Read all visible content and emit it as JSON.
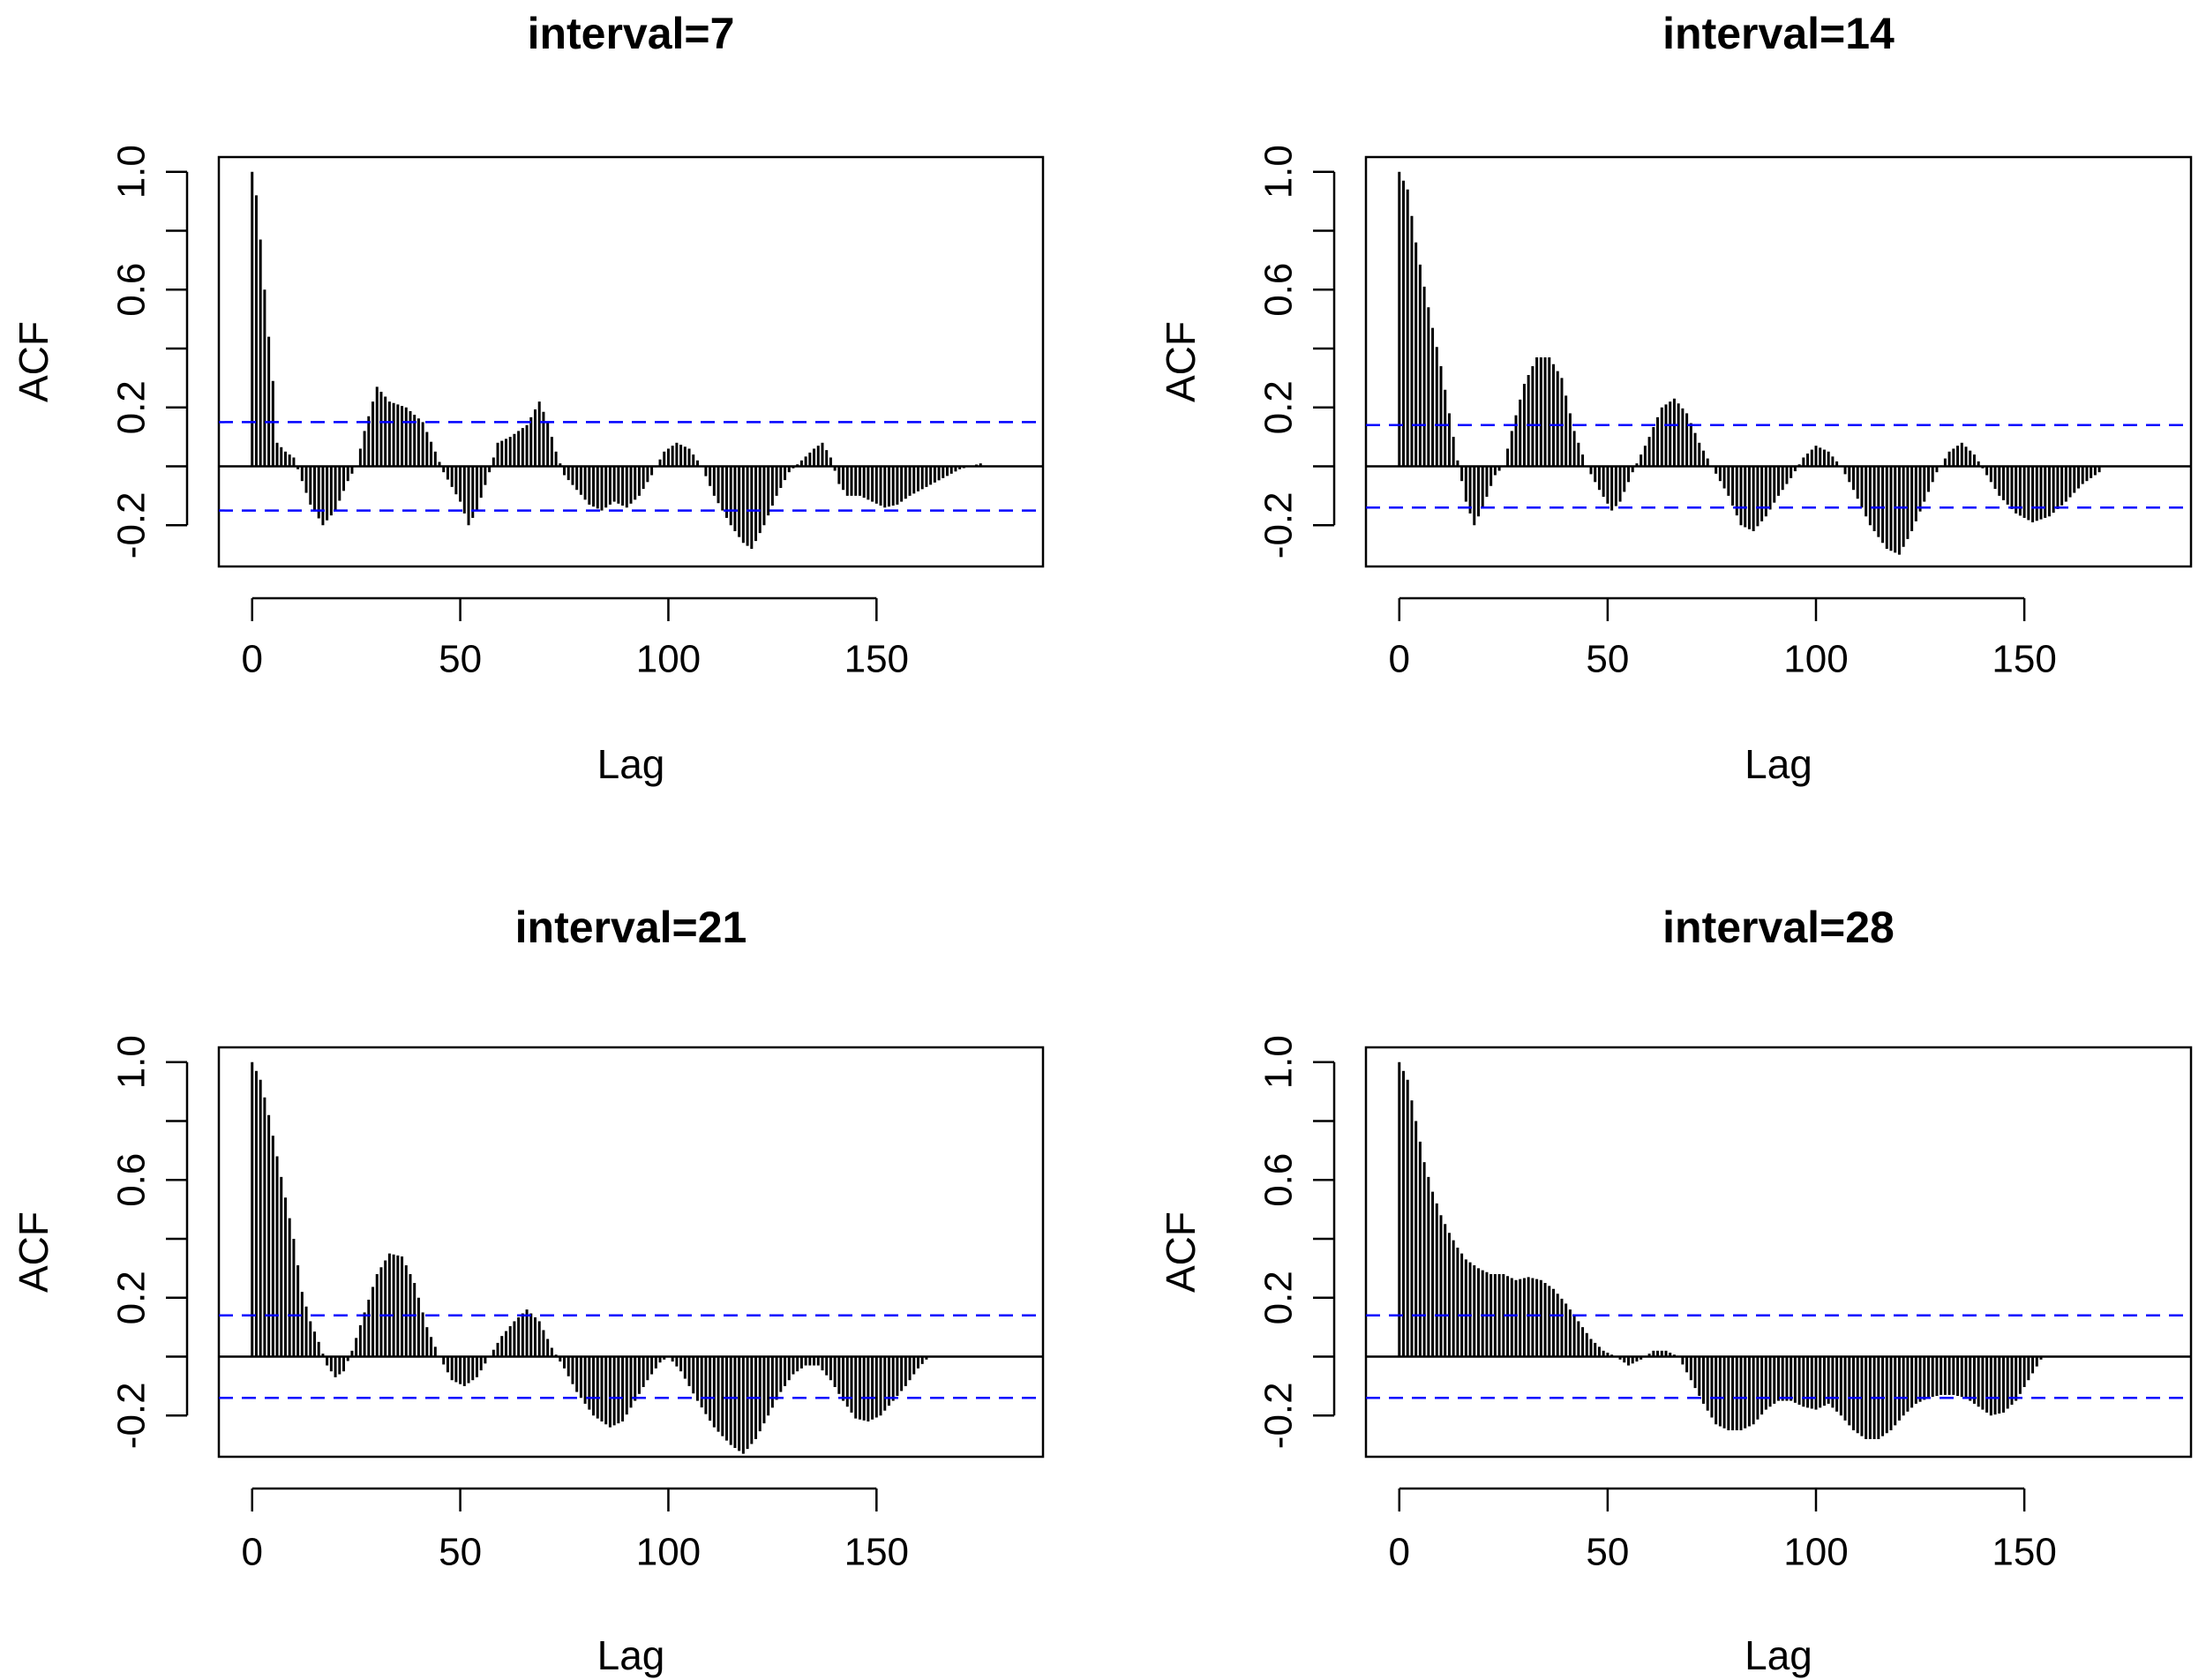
{
  "figure": {
    "background": "#ffffff",
    "line_color": "#000000",
    "ci_color": "#0000ff"
  },
  "chart_data": [
    {
      "type": "bar",
      "subtype": "acf",
      "title": "interval=7",
      "xlabel": "Lag",
      "ylabel": "ACF",
      "xlim": [
        -8,
        190
      ],
      "ylim": [
        -0.34,
        1.05
      ],
      "xticks": [
        "0",
        "50",
        "100",
        "150"
      ],
      "yticks": [
        "-0.2",
        "0.2",
        "0.6",
        "1.0"
      ],
      "ci": 0.15,
      "lag_step": 1,
      "acf_keyframes": [
        [
          0,
          1.0
        ],
        [
          1,
          0.92
        ],
        [
          2,
          0.77
        ],
        [
          3,
          0.6
        ],
        [
          4,
          0.44
        ],
        [
          5,
          0.29
        ],
        [
          6,
          0.08
        ],
        [
          8,
          0.05
        ],
        [
          10,
          0.03
        ],
        [
          12,
          -0.05
        ],
        [
          14,
          -0.13
        ],
        [
          17,
          -0.2
        ],
        [
          20,
          -0.15
        ],
        [
          23,
          -0.05
        ],
        [
          25,
          0.0
        ],
        [
          27,
          0.12
        ],
        [
          30,
          0.27
        ],
        [
          33,
          0.22
        ],
        [
          37,
          0.2
        ],
        [
          41,
          0.15
        ],
        [
          44,
          0.05
        ],
        [
          46,
          -0.02
        ],
        [
          50,
          -0.12
        ],
        [
          52,
          -0.2
        ],
        [
          54,
          -0.15
        ],
        [
          57,
          -0.02
        ],
        [
          59,
          0.08
        ],
        [
          62,
          0.1
        ],
        [
          66,
          0.14
        ],
        [
          69,
          0.22
        ],
        [
          71,
          0.15
        ],
        [
          73,
          0.05
        ],
        [
          75,
          -0.03
        ],
        [
          78,
          -0.08
        ],
        [
          81,
          -0.13
        ],
        [
          84,
          -0.15
        ],
        [
          87,
          -0.12
        ],
        [
          90,
          -0.14
        ],
        [
          93,
          -0.1
        ],
        [
          96,
          -0.03
        ],
        [
          99,
          0.05
        ],
        [
          102,
          0.08
        ],
        [
          105,
          0.06
        ],
        [
          108,
          0.0
        ],
        [
          111,
          -0.1
        ],
        [
          115,
          -0.2
        ],
        [
          118,
          -0.26
        ],
        [
          120,
          -0.28
        ],
        [
          123,
          -0.2
        ],
        [
          126,
          -0.1
        ],
        [
          129,
          -0.02
        ],
        [
          132,
          0.02
        ],
        [
          135,
          0.06
        ],
        [
          137,
          0.08
        ],
        [
          139,
          0.03
        ],
        [
          141,
          -0.06
        ],
        [
          143,
          -0.1
        ],
        [
          146,
          -0.1
        ],
        [
          149,
          -0.12
        ],
        [
          152,
          -0.14
        ],
        [
          155,
          -0.13
        ],
        [
          158,
          -0.1
        ],
        [
          162,
          -0.07
        ],
        [
          166,
          -0.04
        ],
        [
          170,
          -0.01
        ],
        [
          175,
          0.01
        ]
      ]
    },
    {
      "type": "bar",
      "subtype": "acf",
      "title": "interval=14",
      "xlabel": "Lag",
      "ylabel": "ACF",
      "xlim": [
        -8,
        190
      ],
      "ylim": [
        -0.34,
        1.05
      ],
      "xticks": [
        "0",
        "50",
        "100",
        "150"
      ],
      "yticks": [
        "-0.2",
        "0.2",
        "0.6",
        "1.0"
      ],
      "ci": 0.14,
      "lag_step": 1,
      "acf_keyframes": [
        [
          0,
          1.0
        ],
        [
          2,
          0.94
        ],
        [
          4,
          0.76
        ],
        [
          6,
          0.61
        ],
        [
          8,
          0.47
        ],
        [
          10,
          0.34
        ],
        [
          12,
          0.18
        ],
        [
          14,
          0.02
        ],
        [
          16,
          -0.12
        ],
        [
          18,
          -0.2
        ],
        [
          20,
          -0.14
        ],
        [
          23,
          -0.03
        ],
        [
          25,
          0.0
        ],
        [
          27,
          0.12
        ],
        [
          30,
          0.28
        ],
        [
          33,
          0.37
        ],
        [
          36,
          0.37
        ],
        [
          39,
          0.3
        ],
        [
          42,
          0.12
        ],
        [
          45,
          0.0
        ],
        [
          48,
          -0.08
        ],
        [
          51,
          -0.15
        ],
        [
          53,
          -0.12
        ],
        [
          56,
          -0.02
        ],
        [
          60,
          0.1
        ],
        [
          63,
          0.2
        ],
        [
          66,
          0.23
        ],
        [
          69,
          0.18
        ],
        [
          72,
          0.08
        ],
        [
          75,
          0.0
        ],
        [
          79,
          -0.1
        ],
        [
          82,
          -0.2
        ],
        [
          85,
          -0.22
        ],
        [
          88,
          -0.17
        ],
        [
          91,
          -0.1
        ],
        [
          94,
          -0.04
        ],
        [
          97,
          0.03
        ],
        [
          100,
          0.07
        ],
        [
          103,
          0.05
        ],
        [
          106,
          0.0
        ],
        [
          109,
          -0.08
        ],
        [
          113,
          -0.2
        ],
        [
          117,
          -0.28
        ],
        [
          120,
          -0.3
        ],
        [
          123,
          -0.22
        ],
        [
          126,
          -0.12
        ],
        [
          129,
          -0.02
        ],
        [
          132,
          0.05
        ],
        [
          135,
          0.08
        ],
        [
          138,
          0.04
        ],
        [
          141,
          -0.03
        ],
        [
          144,
          -0.1
        ],
        [
          148,
          -0.16
        ],
        [
          152,
          -0.19
        ],
        [
          156,
          -0.17
        ],
        [
          160,
          -0.12
        ],
        [
          164,
          -0.06
        ],
        [
          168,
          -0.02
        ]
      ]
    },
    {
      "type": "bar",
      "subtype": "acf",
      "title": "interval=21",
      "xlabel": "Lag",
      "ylabel": "ACF",
      "xlim": [
        -8,
        190
      ],
      "ylim": [
        -0.34,
        1.05
      ],
      "xticks": [
        "0",
        "50",
        "100",
        "150"
      ],
      "yticks": [
        "-0.2",
        "0.2",
        "0.6",
        "1.0"
      ],
      "ci": 0.14,
      "lag_step": 1,
      "acf_keyframes": [
        [
          0,
          1.0
        ],
        [
          2,
          0.94
        ],
        [
          4,
          0.82
        ],
        [
          6,
          0.68
        ],
        [
          8,
          0.54
        ],
        [
          10,
          0.4
        ],
        [
          12,
          0.22
        ],
        [
          14,
          0.12
        ],
        [
          16,
          0.05
        ],
        [
          18,
          -0.03
        ],
        [
          20,
          -0.07
        ],
        [
          22,
          -0.05
        ],
        [
          24,
          0.02
        ],
        [
          27,
          0.15
        ],
        [
          30,
          0.28
        ],
        [
          33,
          0.35
        ],
        [
          36,
          0.34
        ],
        [
          39,
          0.25
        ],
        [
          42,
          0.1
        ],
        [
          45,
          0.0
        ],
        [
          48,
          -0.08
        ],
        [
          51,
          -0.1
        ],
        [
          54,
          -0.07
        ],
        [
          57,
          0.0
        ],
        [
          60,
          0.07
        ],
        [
          63,
          0.12
        ],
        [
          66,
          0.16
        ],
        [
          69,
          0.12
        ],
        [
          72,
          0.03
        ],
        [
          75,
          -0.04
        ],
        [
          78,
          -0.12
        ],
        [
          82,
          -0.2
        ],
        [
          86,
          -0.24
        ],
        [
          89,
          -0.22
        ],
        [
          92,
          -0.15
        ],
        [
          95,
          -0.08
        ],
        [
          98,
          -0.02
        ],
        [
          100,
          0.0
        ],
        [
          103,
          -0.05
        ],
        [
          107,
          -0.15
        ],
        [
          111,
          -0.24
        ],
        [
          115,
          -0.3
        ],
        [
          118,
          -0.33
        ],
        [
          121,
          -0.28
        ],
        [
          124,
          -0.2
        ],
        [
          127,
          -0.12
        ],
        [
          130,
          -0.06
        ],
        [
          133,
          -0.03
        ],
        [
          136,
          -0.03
        ],
        [
          139,
          -0.08
        ],
        [
          142,
          -0.15
        ],
        [
          145,
          -0.21
        ],
        [
          148,
          -0.22
        ],
        [
          151,
          -0.2
        ],
        [
          154,
          -0.15
        ],
        [
          157,
          -0.1
        ],
        [
          160,
          -0.04
        ],
        [
          162,
          -0.01
        ]
      ]
    },
    {
      "type": "bar",
      "subtype": "acf",
      "title": "interval=28",
      "xlabel": "Lag",
      "ylabel": "ACF",
      "xlim": [
        -8,
        190
      ],
      "ylim": [
        -0.34,
        1.05
      ],
      "xticks": [
        "0",
        "50",
        "100",
        "150"
      ],
      "yticks": [
        "-0.2",
        "0.2",
        "0.6",
        "1.0"
      ],
      "ci": 0.14,
      "lag_step": 1,
      "acf_keyframes": [
        [
          0,
          1.0
        ],
        [
          2,
          0.94
        ],
        [
          4,
          0.8
        ],
        [
          6,
          0.66
        ],
        [
          8,
          0.56
        ],
        [
          10,
          0.48
        ],
        [
          12,
          0.42
        ],
        [
          14,
          0.37
        ],
        [
          16,
          0.33
        ],
        [
          19,
          0.3
        ],
        [
          22,
          0.28
        ],
        [
          25,
          0.28
        ],
        [
          28,
          0.26
        ],
        [
          31,
          0.27
        ],
        [
          34,
          0.26
        ],
        [
          37,
          0.23
        ],
        [
          40,
          0.18
        ],
        [
          43,
          0.12
        ],
        [
          46,
          0.06
        ],
        [
          49,
          0.02
        ],
        [
          52,
          0.0
        ],
        [
          55,
          -0.03
        ],
        [
          58,
          -0.01
        ],
        [
          61,
          0.02
        ],
        [
          64,
          0.02
        ],
        [
          67,
          0.0
        ],
        [
          70,
          -0.08
        ],
        [
          73,
          -0.16
        ],
        [
          76,
          -0.23
        ],
        [
          79,
          -0.25
        ],
        [
          82,
          -0.25
        ],
        [
          85,
          -0.23
        ],
        [
          88,
          -0.18
        ],
        [
          91,
          -0.15
        ],
        [
          94,
          -0.15
        ],
        [
          97,
          -0.17
        ],
        [
          100,
          -0.18
        ],
        [
          103,
          -0.16
        ],
        [
          106,
          -0.2
        ],
        [
          109,
          -0.25
        ],
        [
          112,
          -0.28
        ],
        [
          115,
          -0.28
        ],
        [
          118,
          -0.25
        ],
        [
          121,
          -0.2
        ],
        [
          124,
          -0.16
        ],
        [
          127,
          -0.14
        ],
        [
          130,
          -0.13
        ],
        [
          133,
          -0.13
        ],
        [
          136,
          -0.14
        ],
        [
          139,
          -0.17
        ],
        [
          142,
          -0.2
        ],
        [
          145,
          -0.19
        ],
        [
          148,
          -0.15
        ],
        [
          151,
          -0.08
        ],
        [
          154,
          -0.01
        ]
      ]
    }
  ]
}
